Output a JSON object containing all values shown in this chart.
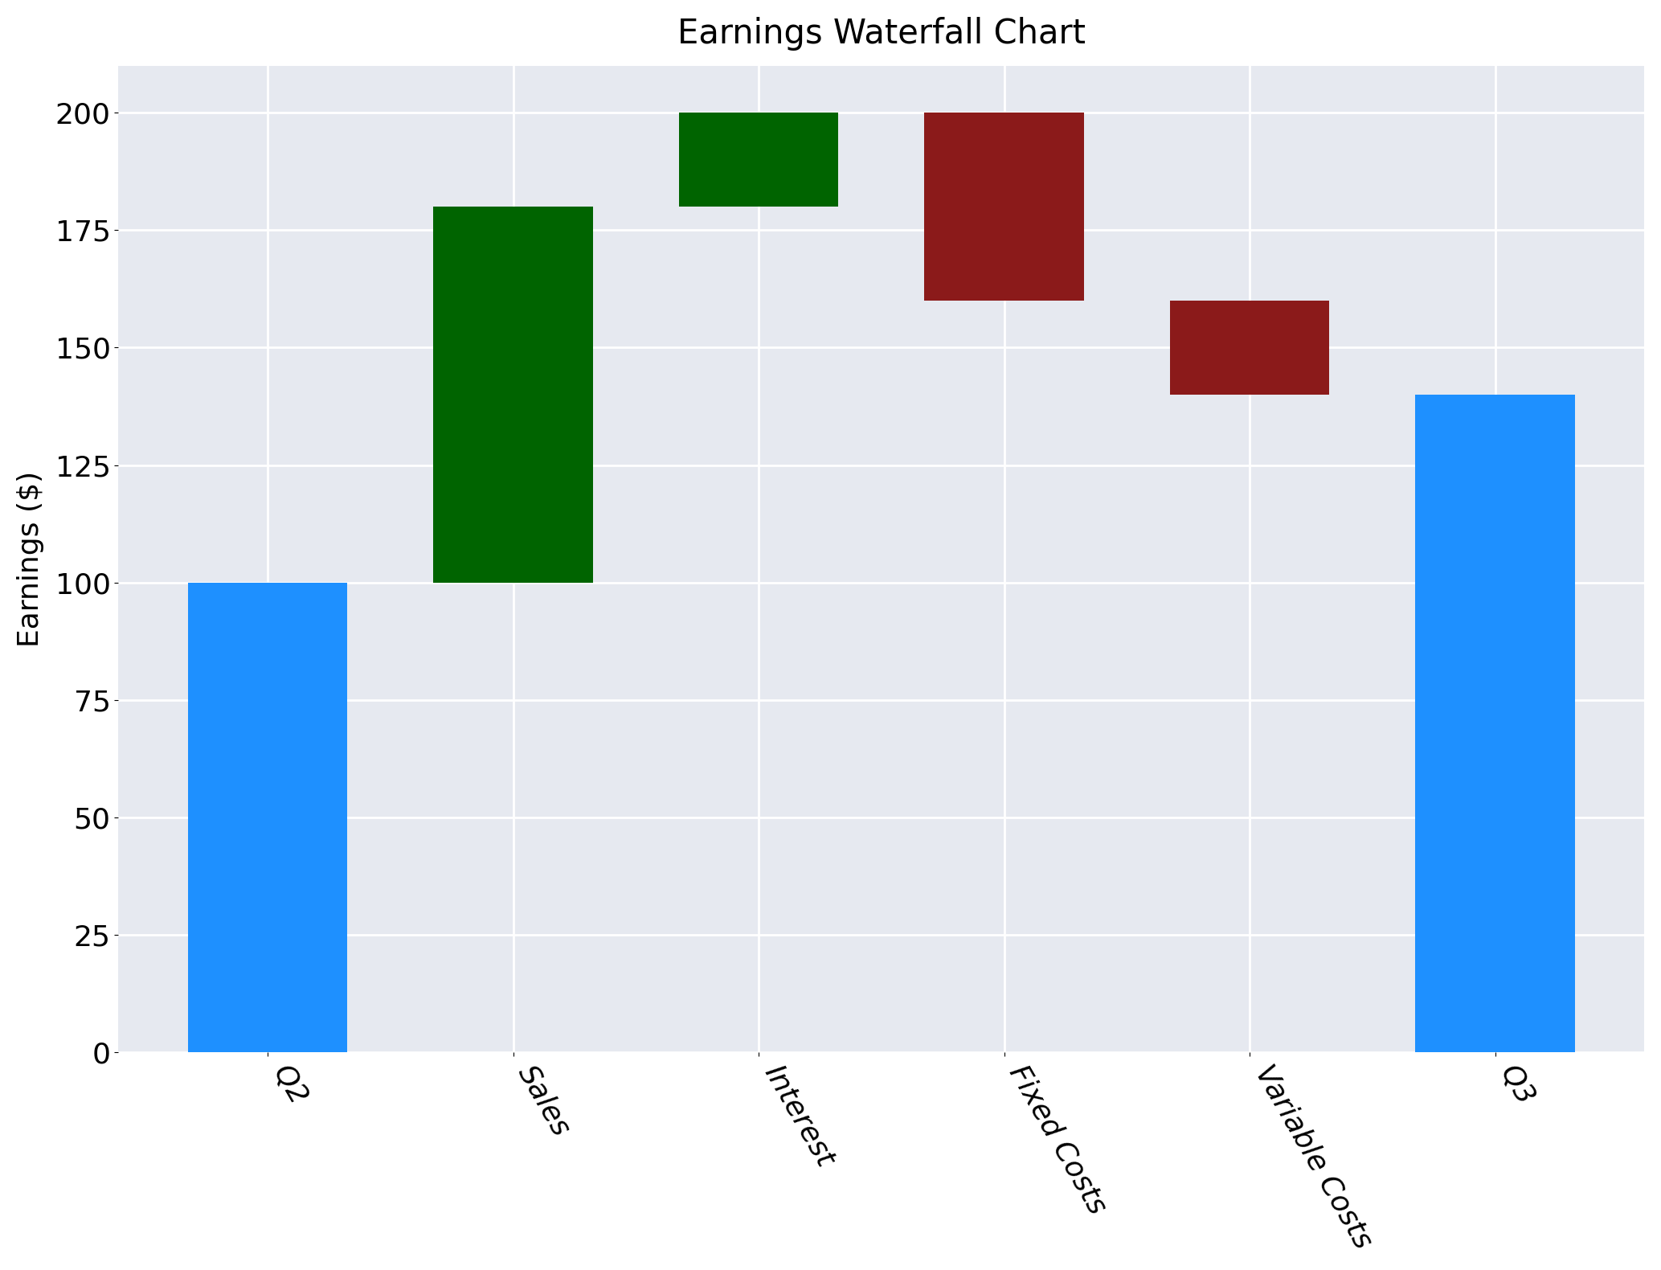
{
  "title": "Earnings Waterfall Chart",
  "ylabel": "Earnings ($)",
  "categories": [
    "Q2",
    "Sales",
    "Interest",
    "Fixed Costs",
    "Variable Costs",
    "Q3"
  ],
  "bar_bottoms": [
    0,
    100,
    180,
    160,
    140,
    0
  ],
  "bar_heights": [
    100,
    80,
    20,
    40,
    20,
    140
  ],
  "colors": [
    "#1E90FF",
    "#006400",
    "#006400",
    "#8B1A1A",
    "#8B1A1A",
    "#1E90FF"
  ],
  "ylim": [
    0,
    210
  ],
  "yticks": [
    0,
    25,
    50,
    75,
    100,
    125,
    150,
    175,
    200
  ],
  "plot_bg_color": "#E6E9F0",
  "fig_bg_color": "#FFFFFF",
  "grid_color": "#FFFFFF",
  "figsize": [
    20.67,
    15.8
  ],
  "dpi": 100,
  "title_fontsize": 30,
  "label_fontsize": 26,
  "tick_fontsize": 26,
  "bar_width": 0.65
}
